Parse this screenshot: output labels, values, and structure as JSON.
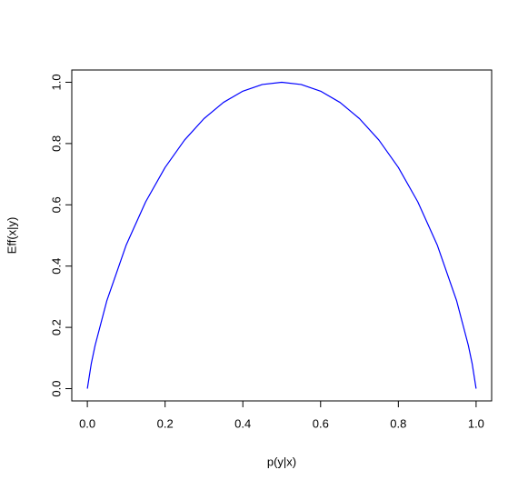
{
  "chart_data": {
    "type": "line",
    "x_label": "p(y|x)",
    "y_label": "Eff(x|y)",
    "x": [
      0,
      0.01,
      0.02,
      0.05,
      0.1,
      0.15,
      0.2,
      0.25,
      0.3,
      0.35,
      0.4,
      0.45,
      0.5,
      0.55,
      0.6,
      0.65,
      0.7,
      0.75,
      0.8,
      0.85,
      0.9,
      0.95,
      0.98,
      0.99,
      1
    ],
    "series": [
      {
        "color": "#0000ff",
        "values": [
          0,
          0.0808,
          0.1414,
          0.2864,
          0.469,
          0.6098,
          0.7219,
          0.8113,
          0.8813,
          0.9341,
          0.971,
          0.9928,
          1,
          0.9928,
          0.971,
          0.9341,
          0.8813,
          0.8113,
          0.7219,
          0.6098,
          0.469,
          0.2864,
          0.1414,
          0.0808,
          0
        ]
      }
    ],
    "xlim": [
      -0.04,
      1.04
    ],
    "ylim": [
      -0.04,
      1.04
    ],
    "xticks": [
      {
        "value": 0,
        "label": "0.0"
      },
      0.2,
      0.4,
      0.6,
      0.8,
      {
        "value": 1,
        "label": "1.0"
      }
    ],
    "yticks": [
      {
        "value": 0,
        "label": "0.0"
      },
      0.2,
      0.4,
      0.6,
      0.8,
      {
        "value": 1,
        "label": "1.0"
      }
    ]
  }
}
